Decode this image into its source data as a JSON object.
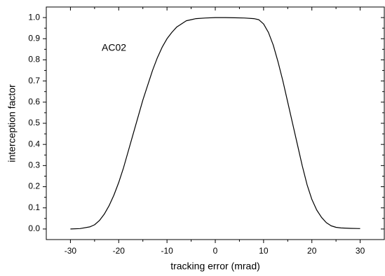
{
  "chart_data": {
    "type": "line",
    "xlabel": "tracking error (mrad)",
    "ylabel": "interception factor",
    "annotation": "AC02",
    "x": [
      -30,
      -28,
      -26,
      -25,
      -24,
      -23,
      -22,
      -21,
      -20,
      -19,
      -18,
      -17,
      -16,
      -15,
      -14,
      -13,
      -12,
      -11,
      -10,
      -9,
      -8,
      -7,
      -6,
      -5,
      -4,
      -2,
      0,
      2,
      4,
      6,
      8,
      9,
      10,
      11,
      12,
      13,
      14,
      15,
      16,
      17,
      18,
      19,
      20,
      21,
      22,
      23,
      24,
      25,
      26,
      28,
      30
    ],
    "series": [
      {
        "name": "AC02",
        "color": "#000000",
        "values": [
          0.0,
          0.002,
          0.01,
          0.02,
          0.04,
          0.07,
          0.11,
          0.16,
          0.22,
          0.29,
          0.37,
          0.45,
          0.53,
          0.61,
          0.68,
          0.75,
          0.81,
          0.86,
          0.9,
          0.93,
          0.955,
          0.97,
          0.985,
          0.99,
          0.995,
          0.998,
          1.0,
          1.0,
          0.999,
          0.998,
          0.995,
          0.99,
          0.97,
          0.93,
          0.87,
          0.79,
          0.7,
          0.6,
          0.5,
          0.4,
          0.3,
          0.21,
          0.14,
          0.09,
          0.055,
          0.03,
          0.015,
          0.008,
          0.005,
          0.003,
          0.002
        ]
      }
    ],
    "xlim": [
      -35,
      35
    ],
    "ylim": [
      -0.05,
      1.05
    ],
    "xticks": [
      -30,
      -20,
      -10,
      0,
      10,
      20,
      30
    ],
    "yticks": [
      {
        "value": 0,
        "label": "0.0"
      },
      0.1,
      0.2,
      0.3,
      0.4,
      0.5,
      0.6,
      0.7,
      0.8,
      0.9,
      {
        "value": 1,
        "label": "1.0"
      }
    ]
  }
}
